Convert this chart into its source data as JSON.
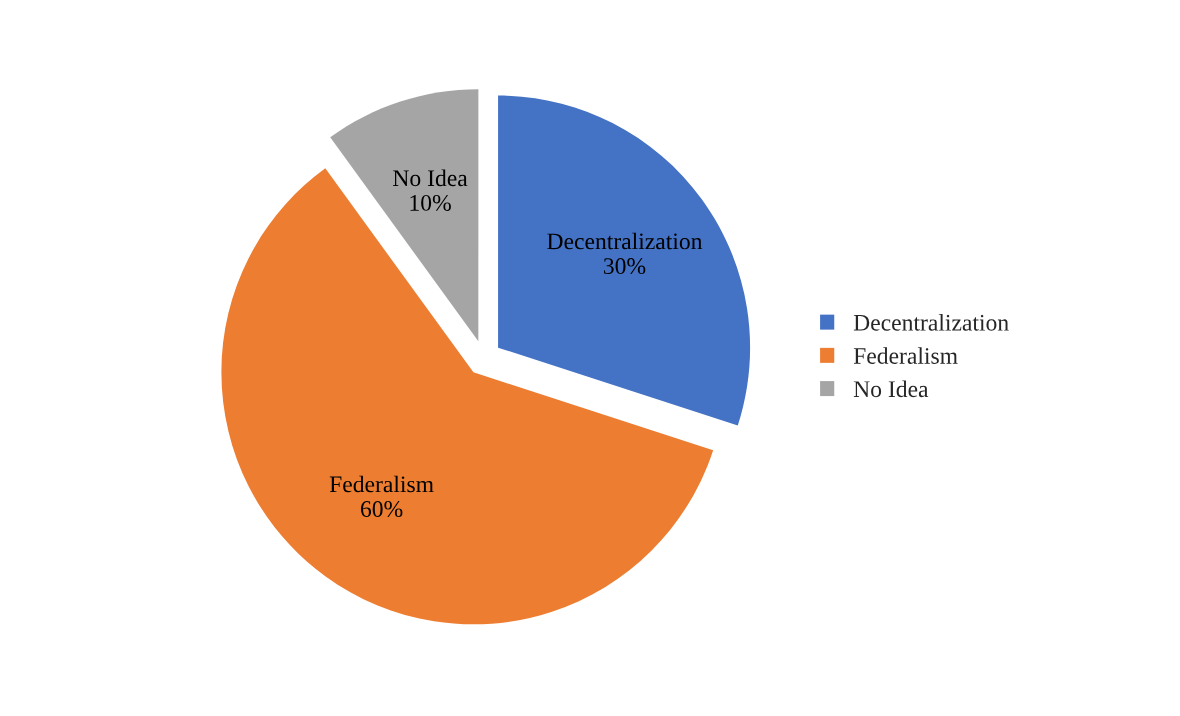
{
  "chart_data": {
    "type": "pie",
    "categories": [
      "Decentralization",
      "Federalism",
      "No Idea"
    ],
    "values": [
      30,
      60,
      10
    ],
    "value_labels": [
      "30%",
      "60%",
      "10%"
    ],
    "colors": [
      "#4472c4",
      "#ed7d31",
      "#a5a5a5"
    ],
    "legend": "right"
  }
}
